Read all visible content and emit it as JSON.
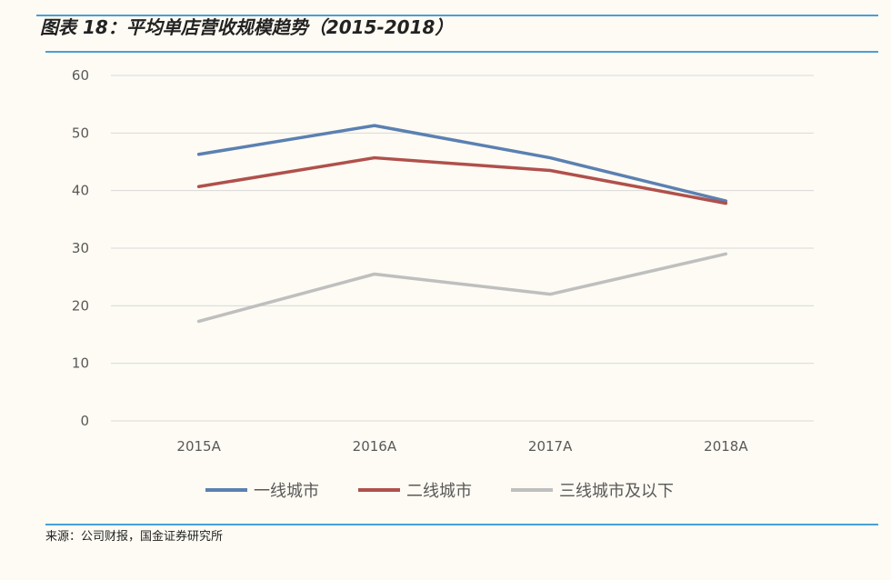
{
  "title": "图表 18：平均单店营收规模趋势（2015-2018）",
  "source": "来源：公司财报，国金证券研究所",
  "chart_data": {
    "type": "line",
    "title": "",
    "xlabel": "",
    "ylabel": "",
    "categories": [
      "2015A",
      "2016A",
      "2017A",
      "2018A"
    ],
    "ylim": [
      0,
      60
    ],
    "yticks": [
      0,
      10,
      20,
      30,
      40,
      50,
      60
    ],
    "grid": true,
    "legend_position": "bottom",
    "series": [
      {
        "name": "一线城市",
        "color": "#5b80b2",
        "values": [
          46.3,
          51.3,
          45.7,
          38.2
        ]
      },
      {
        "name": "二线城市",
        "color": "#b0504c",
        "values": [
          40.7,
          45.7,
          43.5,
          37.8
        ]
      },
      {
        "name": "三线城市及以下",
        "color": "#bfbfbf",
        "values": [
          17.3,
          25.5,
          22.0,
          29.0
        ]
      }
    ]
  }
}
